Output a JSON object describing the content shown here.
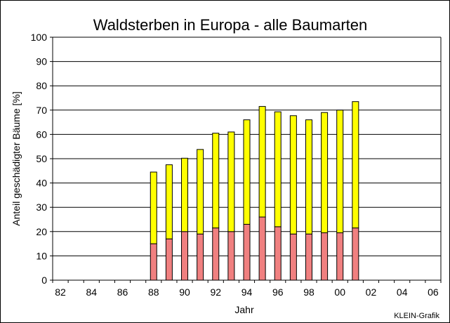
{
  "chart_data": {
    "type": "bar",
    "stacked": true,
    "title": "Waldsterben in Europa - alle Baumarten",
    "xlabel": "Jahr",
    "ylabel": "Anteil geschädigter Bäume [%]",
    "ylim": [
      0,
      100
    ],
    "yticks": [
      "0",
      "10",
      "20",
      "30",
      "40",
      "50",
      "60",
      "70",
      "80",
      "90",
      "100"
    ],
    "categories": [
      "82",
      "83",
      "84",
      "85",
      "86",
      "87",
      "88",
      "89",
      "90",
      "91",
      "92",
      "93",
      "94",
      "95",
      "96",
      "97",
      "98",
      "99",
      "00",
      "01",
      "02",
      "03",
      "04",
      "05",
      "06"
    ],
    "xtick_labels": [
      "82",
      "84",
      "86",
      "88",
      "90",
      "92",
      "94",
      "96",
      "98",
      "00",
      "02",
      "04",
      "06"
    ],
    "grid": true,
    "legend": "none",
    "series": [
      {
        "color": "#f08080",
        "values": [
          null,
          null,
          null,
          null,
          null,
          null,
          15,
          17,
          20,
          19,
          21.5,
          20,
          23,
          26,
          22,
          19,
          19,
          19.5,
          19.5,
          21.5,
          null,
          null,
          null,
          null,
          null
        ]
      },
      {
        "color": "#ffff00",
        "values": [
          null,
          null,
          null,
          null,
          null,
          null,
          29.5,
          30.5,
          30.2,
          34.8,
          39,
          41,
          43,
          45.5,
          47.3,
          48.7,
          47,
          49.5,
          50.5,
          52,
          null,
          null,
          null,
          null,
          null
        ]
      }
    ],
    "totals": [
      null,
      null,
      null,
      null,
      null,
      null,
      44.5,
      47.5,
      50.2,
      53.8,
      60.5,
      61,
      66,
      71.5,
      69.3,
      67.7,
      66,
      69,
      70,
      73.5,
      null,
      null,
      null,
      null,
      null
    ]
  },
  "credit": "KLEIN-Grafik"
}
